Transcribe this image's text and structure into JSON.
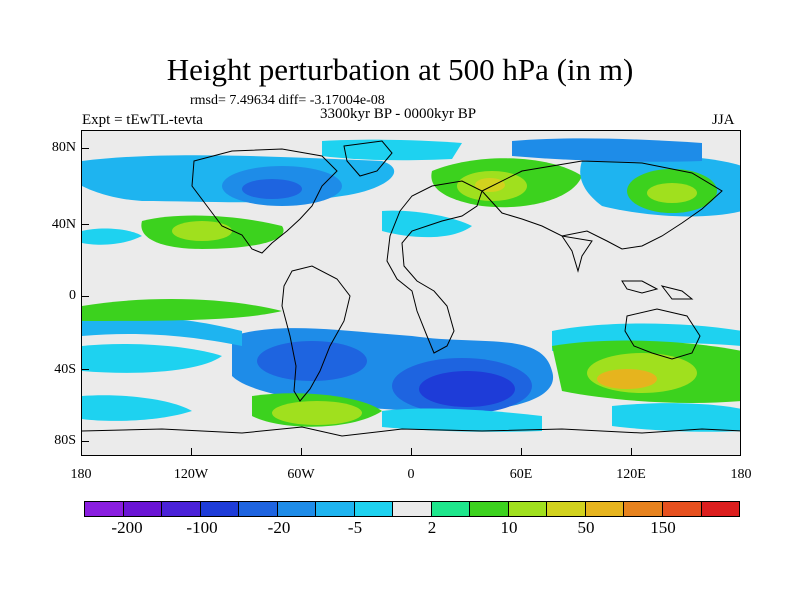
{
  "title": "Height perturbation at 500 hPa (in m)",
  "stats": "rmsd= 7.49634 diff= -3.17004e-08",
  "experiment": "Expt = tEwTL-tevta",
  "period": "3300kyr BP - 0000kyr BP",
  "season": "JJA",
  "axes": {
    "y_ticks": [
      "80N",
      "40N",
      "0",
      "40S",
      "80S"
    ],
    "x_ticks": [
      "180",
      "120W",
      "60W",
      "0",
      "60E",
      "120E",
      "180"
    ]
  },
  "colorbar": {
    "colors": [
      "#8a1ee0",
      "#6a14d4",
      "#4a22d8",
      "#1e3cd8",
      "#1e64e0",
      "#1e8ce8",
      "#1eb4f0",
      "#1ed2f0",
      "#eaeaea",
      "#1ee68c",
      "#3cd21e",
      "#a0e01e",
      "#d2d21e",
      "#e6b41e",
      "#e6821e",
      "#e6501e",
      "#dc1e1e"
    ],
    "labels": [
      "-200",
      "-100",
      "-20",
      "-5",
      "2",
      "10",
      "50",
      "150"
    ]
  }
}
